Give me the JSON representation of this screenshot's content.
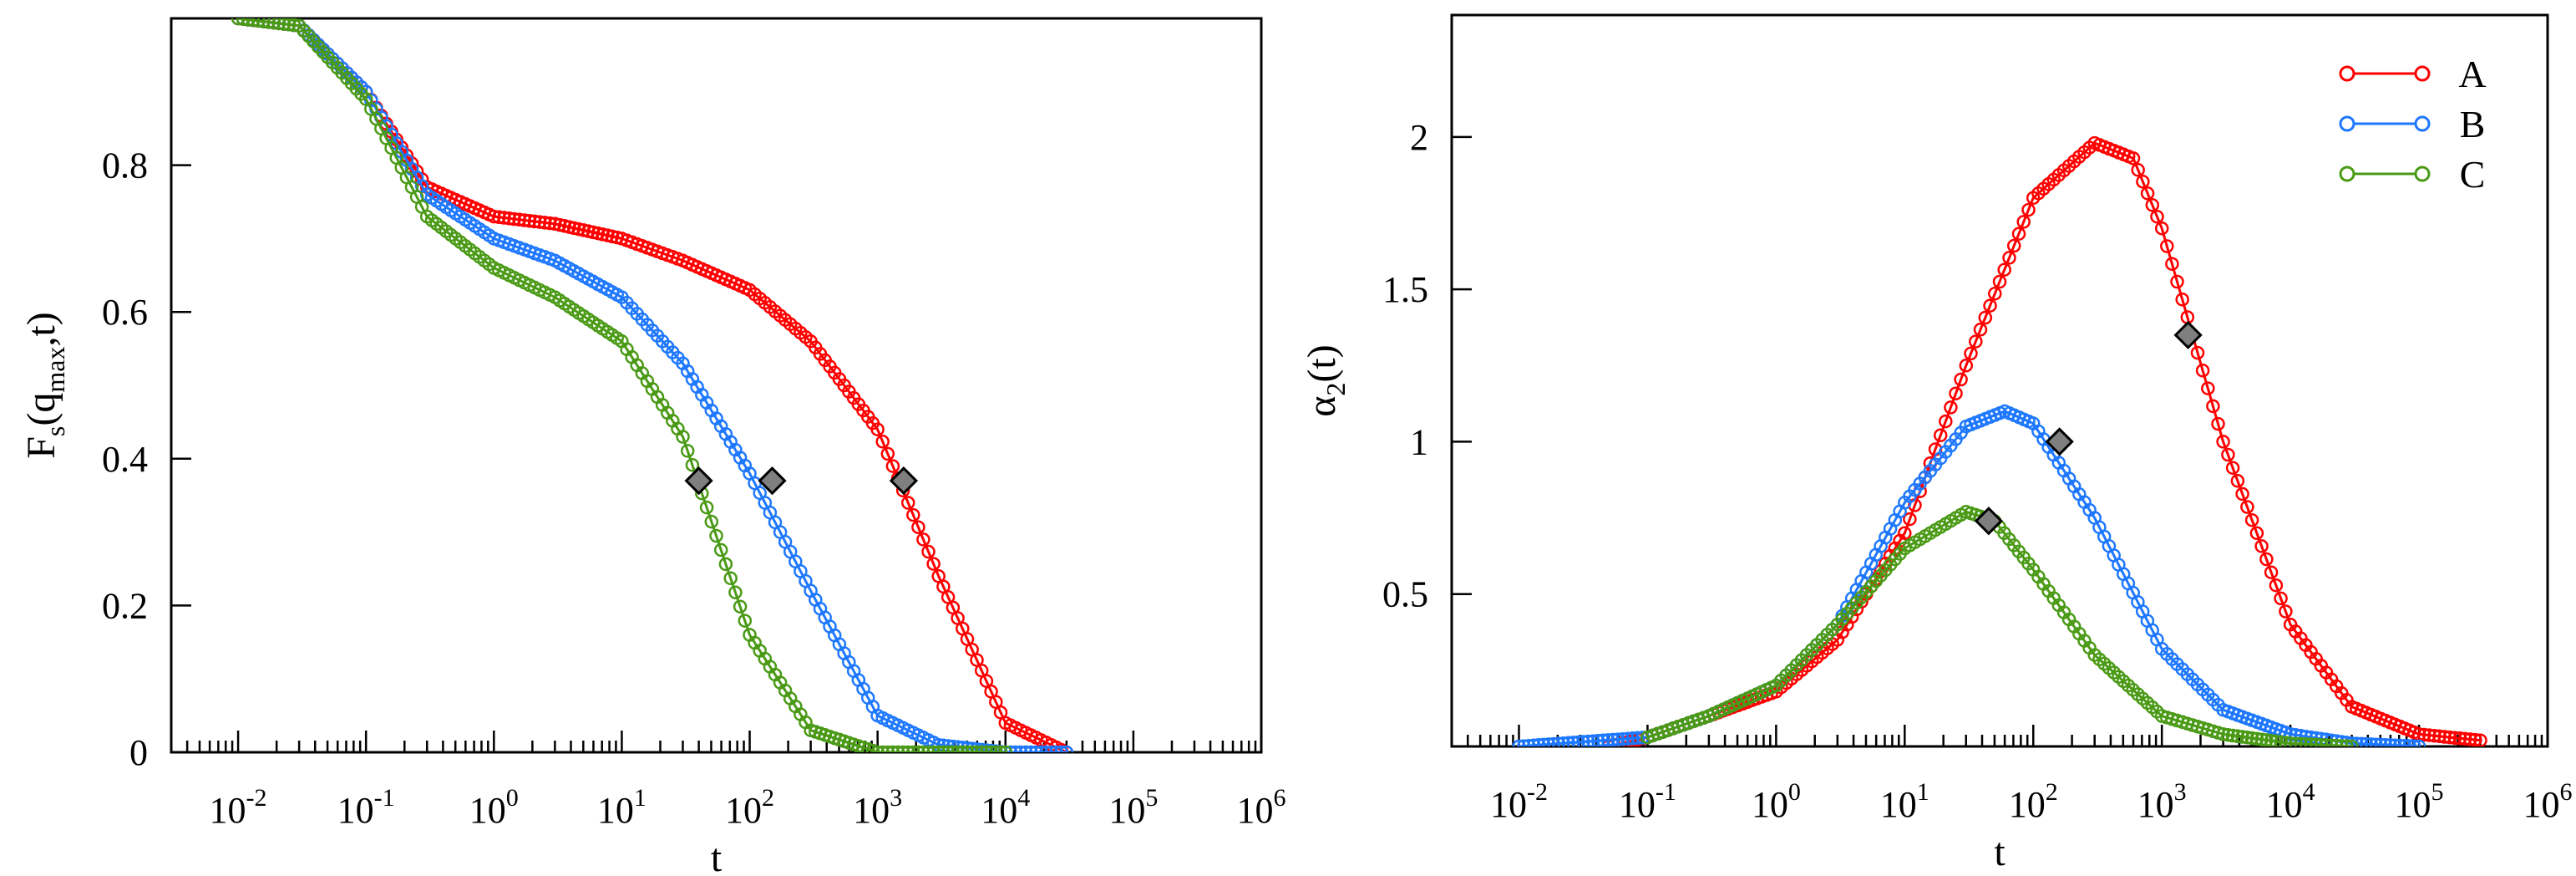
{
  "chart_data": [
    {
      "type": "line",
      "panel": "left",
      "title": "",
      "xlabel": "t",
      "ylabel": {
        "main": "F",
        "sub1": "s",
        "paren_open": "(q",
        "sub2": "max",
        "paren_close": ",t)"
      },
      "xscale": "log",
      "xlim": [
        0.003,
        1000000
      ],
      "ylim": [
        0,
        1.0
      ],
      "xtick_labels": [
        {
          "base": "10",
          "exp": "-2",
          "value": 0.01
        },
        {
          "base": "10",
          "exp": "-1",
          "value": 0.1
        },
        {
          "base": "10",
          "exp": "0",
          "value": 1
        },
        {
          "base": "10",
          "exp": "1",
          "value": 10
        },
        {
          "base": "10",
          "exp": "2",
          "value": 100
        },
        {
          "base": "10",
          "exp": "3",
          "value": 1000
        },
        {
          "base": "10",
          "exp": "4",
          "value": 10000
        },
        {
          "base": "10",
          "exp": "5",
          "value": 100000
        },
        {
          "base": "10",
          "exp": "6",
          "value": 1000000
        }
      ],
      "ytick_labels": [
        {
          "label": "0",
          "value": 0
        },
        {
          "label": "0.2",
          "value": 0.2
        },
        {
          "label": "0.4",
          "value": 0.4
        },
        {
          "label": "0.6",
          "value": 0.6
        },
        {
          "label": "0.8",
          "value": 0.8
        }
      ],
      "series": [
        {
          "name": "A",
          "color": "#ff0000",
          "x": [
            0.01,
            0.03,
            0.1,
            0.3,
            1,
            3,
            10,
            30,
            100,
            300,
            1000,
            3000,
            10000,
            30000
          ],
          "y": [
            1.0,
            0.99,
            0.9,
            0.77,
            0.73,
            0.72,
            0.7,
            0.67,
            0.63,
            0.56,
            0.44,
            0.24,
            0.04,
            0.0
          ]
        },
        {
          "name": "B",
          "color": "#1e78ff",
          "x": [
            0.01,
            0.03,
            0.1,
            0.3,
            1,
            3,
            10,
            30,
            100,
            300,
            1000,
            3000,
            10000,
            30000
          ],
          "y": [
            1.0,
            0.99,
            0.9,
            0.76,
            0.7,
            0.67,
            0.62,
            0.53,
            0.38,
            0.22,
            0.05,
            0.01,
            0.0,
            0.0
          ]
        },
        {
          "name": "C",
          "color": "#4a9a16",
          "x": [
            0.01,
            0.03,
            0.1,
            0.3,
            1,
            3,
            10,
            30,
            100,
            300,
            1000,
            3000,
            10000
          ],
          "y": [
            1.0,
            0.99,
            0.89,
            0.73,
            0.66,
            0.62,
            0.56,
            0.43,
            0.16,
            0.03,
            0.0,
            0.0,
            0.0
          ]
        }
      ],
      "markers": [
        {
          "series": "A",
          "x": 1600,
          "y": 0.37
        },
        {
          "series": "B",
          "x": 150,
          "y": 0.37
        },
        {
          "series": "C",
          "x": 40,
          "y": 0.37
        }
      ]
    },
    {
      "type": "line",
      "panel": "right",
      "title": "",
      "xlabel": "t",
      "ylabel": {
        "main": "α",
        "sub1": "2",
        "paren_open": "(t)",
        "sub2": "",
        "paren_close": ""
      },
      "xscale": "log",
      "xlim": [
        0.003,
        1000000
      ],
      "ylim": [
        0,
        2.4
      ],
      "xtick_labels": [
        {
          "base": "10",
          "exp": "-2",
          "value": 0.01
        },
        {
          "base": "10",
          "exp": "-1",
          "value": 0.1
        },
        {
          "base": "10",
          "exp": "0",
          "value": 1
        },
        {
          "base": "10",
          "exp": "1",
          "value": 10
        },
        {
          "base": "10",
          "exp": "2",
          "value": 100
        },
        {
          "base": "10",
          "exp": "3",
          "value": 1000
        },
        {
          "base": "10",
          "exp": "4",
          "value": 10000
        },
        {
          "base": "10",
          "exp": "5",
          "value": 100000
        },
        {
          "base": "10",
          "exp": "6",
          "value": 1000000
        }
      ],
      "ytick_labels": [
        {
          "label": "0.5",
          "value": 0.5
        },
        {
          "label": "1",
          "value": 1.0
        },
        {
          "label": "1.5",
          "value": 1.5
        },
        {
          "label": "2",
          "value": 2.0
        }
      ],
      "legend": {
        "position": "top-right",
        "entries": [
          "A",
          "B",
          "C"
        ]
      },
      "series": [
        {
          "name": "A",
          "color": "#ff0000",
          "x": [
            0.05,
            0.1,
            0.3,
            1,
            3,
            10,
            30,
            100,
            300,
            600,
            1000,
            3000,
            10000,
            30000,
            100000,
            300000
          ],
          "y": [
            0.0,
            0.03,
            0.1,
            0.18,
            0.35,
            0.7,
            1.25,
            1.8,
            1.98,
            1.93,
            1.7,
            1.0,
            0.4,
            0.13,
            0.04,
            0.02
          ]
        },
        {
          "name": "B",
          "color": "#1e78ff",
          "x": [
            0.01,
            0.1,
            0.3,
            1,
            3,
            10,
            30,
            60,
            100,
            300,
            1000,
            3000,
            10000,
            30000,
            100000
          ],
          "y": [
            0.0,
            0.03,
            0.1,
            0.2,
            0.4,
            0.8,
            1.05,
            1.1,
            1.06,
            0.75,
            0.32,
            0.12,
            0.04,
            0.01,
            0.0
          ]
        },
        {
          "name": "C",
          "color": "#4a9a16",
          "x": [
            0.1,
            0.3,
            1,
            3,
            10,
            30,
            50,
            100,
            300,
            1000,
            3000,
            10000,
            30000
          ],
          "y": [
            0.03,
            0.1,
            0.2,
            0.4,
            0.65,
            0.77,
            0.74,
            0.58,
            0.3,
            0.1,
            0.04,
            0.01,
            0.0
          ]
        }
      ],
      "markers": [
        {
          "series": "A",
          "x": 1600,
          "y": 1.35
        },
        {
          "series": "B",
          "x": 160,
          "y": 1.0
        },
        {
          "series": "C",
          "x": 45,
          "y": 0.74
        }
      ]
    }
  ]
}
